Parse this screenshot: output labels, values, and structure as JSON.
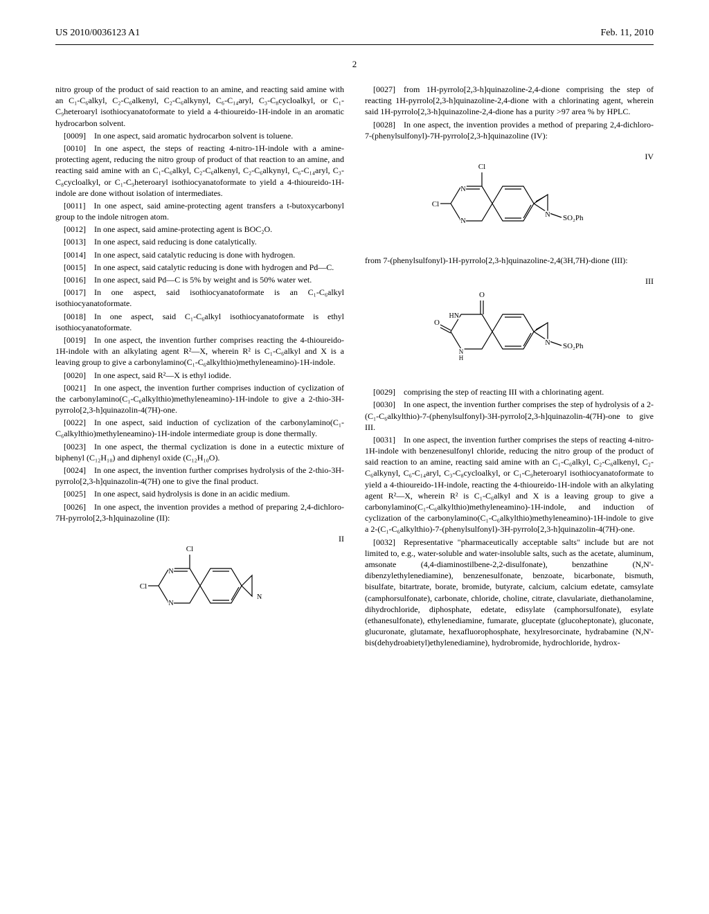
{
  "header": {
    "left": "US 2010/0036123 A1",
    "right": "Feb. 11, 2010"
  },
  "page_number": "2",
  "colors": {
    "text": "#000000",
    "background": "#ffffff",
    "line": "#000000"
  },
  "typography": {
    "body_font": "Times New Roman",
    "body_size": 12,
    "header_size": 14
  },
  "left_column": {
    "p_intro": "nitro group of the product of said reaction to an amine, and reacting said amine with an C₁-C₆alkyl, C₂-C₆alkenyl, C₂-C₆alkynyl, C₆-C₁₄aryl, C₃-C₈cycloalkyl, or C₁-C₉heteroaryl isothiocyanatoformate to yield a 4-thioureido-1H-indole in an aromatic hydrocarbon solvent.",
    "paras": [
      {
        "num": "[0009]",
        "text": "In one aspect, said aromatic hydrocarbon solvent is toluene."
      },
      {
        "num": "[0010]",
        "text": "In one aspect, the steps of reacting 4-nitro-1H-indole with a amine-protecting agent, reducing the nitro group of product of that reaction to an amine, and reacting said amine with an C₁-C₆alkyl, C₂-C₆alkenyl, C₂-C₆alkynyl, C₆-C₁₄aryl, C₃-C₈cycloalkyl, or C₁-C₉heteroaryl isothiocyanatoformate to yield a 4-thioureido-1H-indole are done without isolation of intermediates."
      },
      {
        "num": "[0011]",
        "text": "In one aspect, said amine-protecting agent transfers a t-butoxycarbonyl group to the indole nitrogen atom."
      },
      {
        "num": "[0012]",
        "text": "In one aspect, said amine-protecting agent is BOC₂O."
      },
      {
        "num": "[0013]",
        "text": "In one aspect, said reducing is done catalytically."
      },
      {
        "num": "[0014]",
        "text": "In one aspect, said catalytic reducing is done with hydrogen."
      },
      {
        "num": "[0015]",
        "text": "In one aspect, said catalytic reducing is done with hydrogen and Pd—C."
      },
      {
        "num": "[0016]",
        "text": "In one aspect, said Pd—C is 5% by weight and is 50% water wet."
      },
      {
        "num": "[0017]",
        "text": "In one aspect, said isothiocyanatoformate is an C₁-C₆alkyl isothiocyanatoformate."
      },
      {
        "num": "[0018]",
        "text": "In one aspect, said C₁-C₆alkyl isothiocyanatoformate is ethyl isothiocyanatoformate."
      },
      {
        "num": "[0019]",
        "text": "In one aspect, the invention further comprises reacting the 4-thioureido-1H-indole with an alkylating agent R²—X, wherein R² is C₁-C₆alkyl and X is a leaving group to give a carbonylamino(C₁-C₆alkylthio)methyleneamino)-1H-indole."
      },
      {
        "num": "[0020]",
        "text": "In one aspect, said R²—X is ethyl iodide."
      },
      {
        "num": "[0021]",
        "text": "In one aspect, the invention further comprises induction of cyclization of the carbonylamino(C₁-C₆alkylthio)methyleneamino)-1H-indole to give a 2-thio-3H-pyrrolo[2,3-h]quinazolin-4(7H)-one."
      },
      {
        "num": "[0022]",
        "text": "In one aspect, said induction of cyclization of the carbonylamino(C₁-C₆alkylthio)methyleneamino)-1H-indole intermediate group is done thermally."
      },
      {
        "num": "[0023]",
        "text": "In one aspect, the thermal cyclization is done in a eutectic mixture of biphenyl (C₁₂H₁₀) and diphenyl oxide (C₁₂H₁₀O)."
      },
      {
        "num": "[0024]",
        "text": "In one aspect, the invention further comprises hydrolysis of the 2-thio-3H-pyrrolo[2,3-h]quinazolin-4(7H) one to give the final product."
      },
      {
        "num": "[0025]",
        "text": "In one aspect, said hydrolysis is done in an acidic medium."
      },
      {
        "num": "[0026]",
        "text": "In one aspect, the invention provides a method of preparing 2,4-dichloro-7H-pyrrolo[2,3-h]quinazoline (II):"
      }
    ],
    "structure_II": {
      "label": "II",
      "atoms": {
        "Cl_top": "Cl",
        "Cl_left": "Cl",
        "N1": "N",
        "N2": "N",
        "NH": "NH"
      }
    }
  },
  "right_column": {
    "paras_top": [
      {
        "num": "[0027]",
        "text": "from 1H-pyrrolo[2,3-h]quinazoline-2,4-dione comprising the step of reacting 1H-pyrrolo[2,3-h]quinazoline-2,4-dione with a chlorinating agent, wherein said 1H-pyrrolo[2,3-h]quinazoline-2,4-dione has a purity >97 area % by HPLC."
      },
      {
        "num": "[0028]",
        "text": "In one aspect, the invention provides a method of preparing 2,4-dichloro-7-(phenylsulfonyl)-7H-pyrrolo[2,3-h]quinazoline (IV):"
      }
    ],
    "structure_IV": {
      "label": "IV",
      "atoms": {
        "Cl_top": "Cl",
        "Cl_left": "Cl",
        "N1": "N",
        "N2": "N",
        "N3": "N",
        "SO2Ph": "SO₂Ph"
      }
    },
    "para_mid1": "from 7-(phenylsulfonyl)-1H-pyrrolo[2,3-h]quinazoline-2,4(3H,7H)-dione (III):",
    "structure_III": {
      "label": "III",
      "atoms": {
        "O_top": "O",
        "HN": "HN",
        "O_left": "O",
        "NH": "N\nH",
        "N3": "N",
        "SO2Ph": "SO₂Ph"
      }
    },
    "paras_bottom": [
      {
        "num": "[0029]",
        "text": "comprising the step of reacting III with a chlorinating agent."
      },
      {
        "num": "[0030]",
        "text": "In one aspect, the invention further comprises the step of hydrolysis of a 2-(C₁-C₆alkylthio)-7-(phenylsulfonyl)-3H-pyrrolo[2,3-h]quinazolin-4(7H)-one to give III."
      },
      {
        "num": "[0031]",
        "text": "In one aspect, the invention further comprises the steps of reacting 4-nitro-1H-indole with benzenesulfonyl chloride, reducing the nitro group of the product of said reaction to an amine, reacting said amine with an C₁-C₆alkyl, C₂-C₆alkenyl, C₂-C₆alkynyl, C₆-C₁₄aryl, C₃-C₈cycloalkyl, or C₁-C₉heteroaryl isothiocyanatoformate to yield a 4-thioureido-1H-indole, reacting the 4-thioureido-1H-indole with an alkylating agent R²—X, wherein R² is C₁-C₆alkyl and X is a leaving group to give a carbonylamino(C₁-C₆alkylthio)methyleneamino)-1H-indole, and induction of cyclization of the carbonylamino(C₁-C₆alkylthio)methyleneamino)-1H-indole to give a 2-(C₁-C₆alkylthio)-7-(phenylsulfonyl)-3H-pyrrolo[2,3-h]quinazolin-4(7H)-one."
      },
      {
        "num": "[0032]",
        "text": "Representative \"pharmaceutically acceptable salts\" include but are not limited to, e.g., water-soluble and water-insoluble salts, such as the acetate, aluminum, amsonate (4,4-diaminostilbene-2,2-disulfonate), benzathine (N,N'-dibenzylethylenediamine), benzenesulfonate, benzoate, bicarbonate, bismuth, bisulfate, bitartrate, borate, bromide, butyrate, calcium, calcium edetate, camsylate (camphorsulfonate), carbonate, chloride, choline, citrate, clavulariate, diethanolamine, dihydrochloride, diphosphate, edetate, edisylate (camphorsulfonate), esylate (ethanesulfonate), ethylenediamine, fumarate, gluceptate (glucoheptonate), gluconate, glucuronate, glutamate, hexafluorophosphate, hexylresorcinate, hydrabamine (N,N'-bis(dehydroabietyl)ethylenediamine), hydrobromide, hydrochloride, hydrox-"
      }
    ]
  }
}
